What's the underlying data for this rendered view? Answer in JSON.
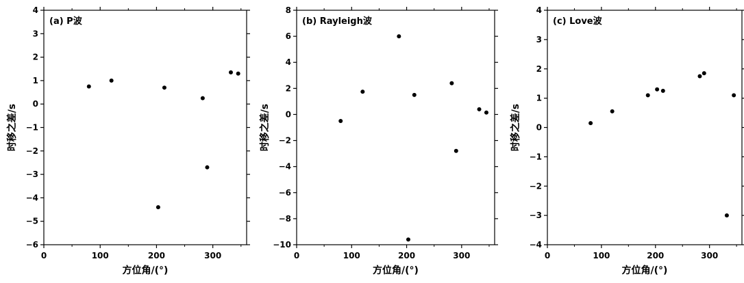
{
  "chart_data": [
    {
      "type": "scatter",
      "title": "(a) P波",
      "xlabel": "方位角/(°)",
      "ylabel": "时移之差/s",
      "xlim": [
        0,
        360
      ],
      "ylim": [
        -6,
        4
      ],
      "xticks": [
        0,
        100,
        200,
        300
      ],
      "yticks": [
        -6,
        -5,
        -4,
        -3,
        -2,
        -1,
        0,
        1,
        2,
        3,
        4
      ],
      "grid": false,
      "marker_color": "#000000",
      "x": [
        80,
        120,
        203,
        214,
        282,
        290,
        332,
        345
      ],
      "y": [
        0.75,
        1.0,
        -4.4,
        0.7,
        0.25,
        -2.7,
        1.35,
        1.3
      ]
    },
    {
      "type": "scatter",
      "title": "(b) Rayleigh波",
      "xlabel": "方位角/(°)",
      "ylabel": "时移之差/s",
      "xlim": [
        0,
        360
      ],
      "ylim": [
        -10,
        8
      ],
      "xticks": [
        0,
        100,
        200,
        300
      ],
      "yticks": [
        -10,
        -8,
        -6,
        -4,
        -2,
        0,
        2,
        4,
        6,
        8
      ],
      "grid": false,
      "marker_color": "#000000",
      "x": [
        80,
        120,
        186,
        203,
        214,
        282,
        290,
        332,
        345
      ],
      "y": [
        -0.5,
        1.75,
        6.0,
        -9.6,
        1.5,
        2.4,
        -2.8,
        0.4,
        0.15
      ]
    },
    {
      "type": "scatter",
      "title": "(c) Love波",
      "xlabel": "方位角/(°)",
      "ylabel": "时移之差/s",
      "xlim": [
        0,
        360
      ],
      "ylim": [
        -4,
        4
      ],
      "xticks": [
        0,
        100,
        200,
        300
      ],
      "yticks": [
        -4,
        -3,
        -2,
        -1,
        0,
        1,
        2,
        3,
        4
      ],
      "grid": false,
      "marker_color": "#000000",
      "x": [
        80,
        120,
        186,
        203,
        214,
        282,
        290,
        332,
        345
      ],
      "y": [
        0.15,
        0.55,
        1.1,
        1.3,
        1.25,
        1.75,
        1.85,
        -3.0,
        1.1
      ]
    }
  ]
}
